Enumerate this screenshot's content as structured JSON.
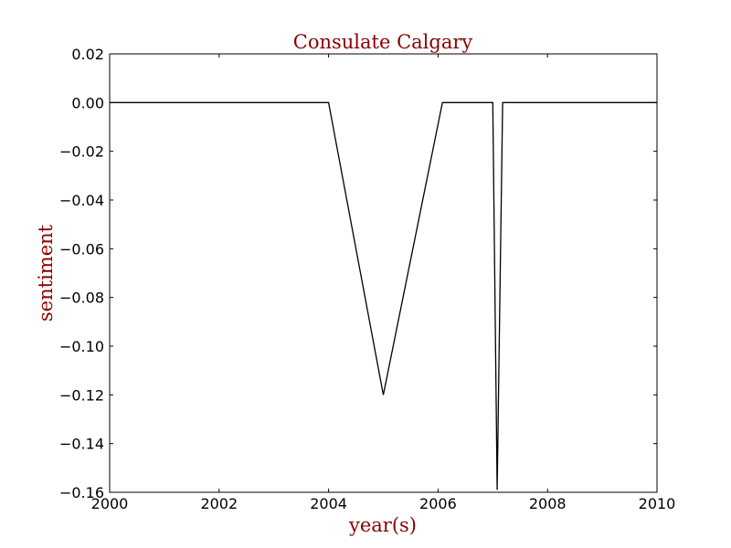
{
  "chart_data": {
    "type": "line",
    "title": "Consulate Calgary",
    "xlabel": "year(s)",
    "ylabel": "sentiment",
    "xlim": [
      2000,
      2010
    ],
    "ylim": [
      -0.16,
      0.02
    ],
    "x_ticks": [
      "2000",
      "2002",
      "2004",
      "2006",
      "2008",
      "2010"
    ],
    "x_tick_values": [
      2000,
      2002,
      2004,
      2006,
      2008,
      2010
    ],
    "y_ticks": [
      "0.02",
      "0.00",
      "−0.02",
      "−0.04",
      "−0.06",
      "−0.08",
      "−0.10",
      "−0.12",
      "−0.14",
      "−0.16"
    ],
    "y_tick_values": [
      0.02,
      0.0,
      -0.02,
      -0.04,
      -0.06,
      -0.08,
      -0.1,
      -0.12,
      -0.14,
      -0.16
    ],
    "grid": false,
    "series": [
      {
        "x": [
          2000,
          2004.0,
          2005.0,
          2006.08,
          2007.0,
          2007.08,
          2007.18,
          2010
        ],
        "y": [
          0.0,
          0.0,
          -0.12,
          0.0,
          0.0,
          -0.159,
          0.0,
          0.0
        ]
      }
    ]
  },
  "colors": {
    "title": "#8b0000",
    "axis_label": "#8b0000",
    "line": "#000000",
    "frame": "#000000"
  }
}
